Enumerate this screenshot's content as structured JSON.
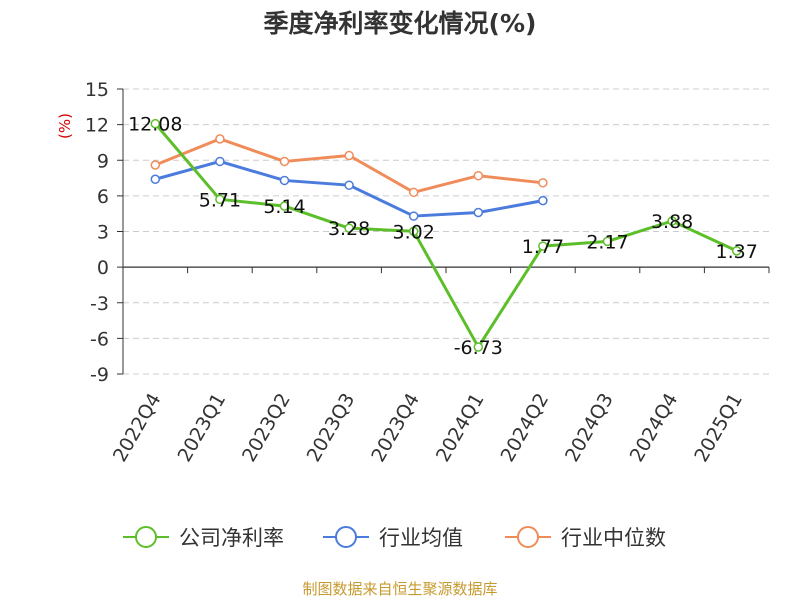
{
  "chart_data": {
    "type": "line",
    "title": "季度净利率变化情况(%)",
    "ylabel": "(%)",
    "xlabel": "",
    "categories": [
      "2022Q4",
      "2023Q1",
      "2023Q2",
      "2023Q3",
      "2023Q4",
      "2024Q1",
      "2024Q2",
      "2024Q3",
      "2024Q4",
      "2025Q1"
    ],
    "y_ticks": [
      15,
      12,
      9,
      6,
      3,
      0,
      -3,
      -6,
      -9
    ],
    "ylim": [
      -9,
      15
    ],
    "grid": "horizontal dashed",
    "legend_position": "bottom",
    "series": [
      {
        "name": "公司净利率",
        "color": "#5cbf2a",
        "values": [
          12.08,
          5.71,
          5.14,
          3.28,
          3.02,
          -6.73,
          1.77,
          2.17,
          3.88,
          1.37
        ],
        "labels": [
          "12.08",
          "5.71",
          "5.14",
          "3.28",
          "3.02",
          "-6.73",
          "1.77",
          "2.17",
          "3.88",
          "1.37"
        ]
      },
      {
        "name": "行业均值",
        "color": "#4b7bdc",
        "values": [
          7.4,
          8.9,
          7.3,
          6.9,
          4.3,
          4.6,
          5.6,
          null,
          null,
          null
        ]
      },
      {
        "name": "行业中位数",
        "color": "#f08c5a",
        "values": [
          8.6,
          10.8,
          8.9,
          9.4,
          6.3,
          7.7,
          7.1,
          null,
          null,
          null
        ]
      }
    ]
  },
  "source": "制图数据来自恒生聚源数据库"
}
